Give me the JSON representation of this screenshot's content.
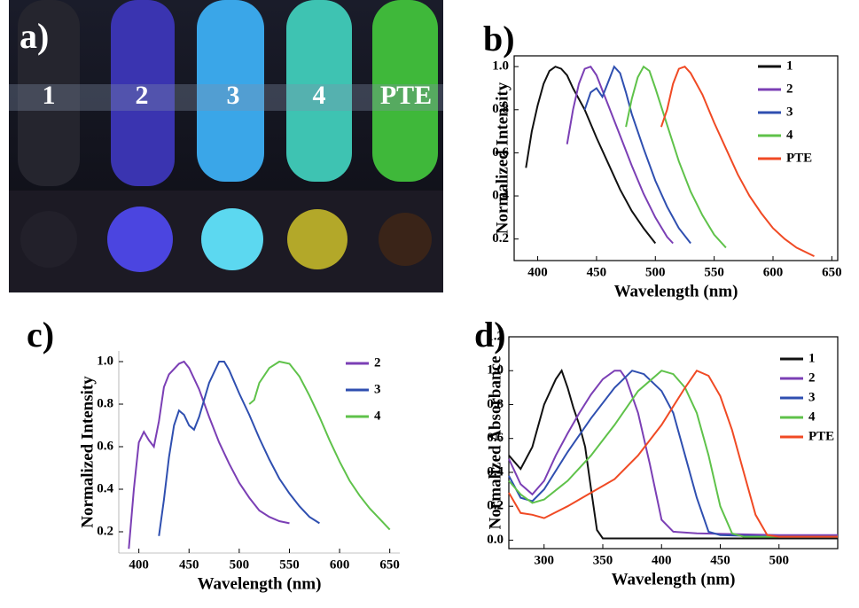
{
  "photo": {
    "label": "a)",
    "vials": [
      "1",
      "2",
      "3",
      "4",
      "PTE"
    ]
  },
  "chart_data": [
    {
      "type": "line",
      "panel_label": "b)",
      "xlabel": "Wavelength (nm)",
      "ylabel": "Normalized Intensity",
      "xlim": [
        380,
        655
      ],
      "ylim": [
        0.1,
        1.05
      ],
      "xticks": [
        400,
        450,
        500,
        550,
        600,
        650
      ],
      "yticks": [
        0.2,
        0.4,
        0.6,
        0.8,
        {
          "value": 1,
          "label": "1.0"
        }
      ],
      "series": [
        {
          "name": "1",
          "color": "#111111",
          "x": [
            390,
            395,
            400,
            405,
            410,
            415,
            420,
            425,
            430,
            440,
            450,
            460,
            470,
            480,
            490,
            500
          ],
          "values": [
            0.53,
            0.7,
            0.82,
            0.92,
            0.98,
            1.0,
            0.99,
            0.96,
            0.9,
            0.8,
            0.67,
            0.55,
            0.43,
            0.33,
            0.25,
            0.18
          ]
        },
        {
          "name": "2",
          "color": "#7b3fb5",
          "x": [
            425,
            430,
            435,
            440,
            445,
            450,
            455,
            460,
            470,
            480,
            490,
            500,
            510,
            515
          ],
          "values": [
            0.64,
            0.8,
            0.92,
            0.99,
            1.0,
            0.96,
            0.89,
            0.82,
            0.68,
            0.54,
            0.41,
            0.3,
            0.21,
            0.18
          ]
        },
        {
          "name": "3",
          "color": "#2f4fb0",
          "x": [
            440,
            445,
            450,
            455,
            460,
            465,
            470,
            475,
            480,
            490,
            500,
            510,
            520,
            530
          ],
          "values": [
            0.8,
            0.88,
            0.9,
            0.86,
            0.93,
            1.0,
            0.97,
            0.88,
            0.78,
            0.62,
            0.47,
            0.35,
            0.25,
            0.18
          ]
        },
        {
          "name": "4",
          "color": "#5fc24a",
          "x": [
            475,
            480,
            485,
            490,
            495,
            500,
            510,
            520,
            530,
            540,
            550,
            560
          ],
          "values": [
            0.72,
            0.85,
            0.95,
            1.0,
            0.98,
            0.9,
            0.73,
            0.56,
            0.42,
            0.31,
            0.22,
            0.16
          ]
        },
        {
          "name": "PTE",
          "color": "#f04a24",
          "x": [
            505,
            510,
            515,
            520,
            525,
            530,
            540,
            550,
            560,
            570,
            580,
            590,
            600,
            610,
            620,
            635
          ],
          "values": [
            0.72,
            0.8,
            0.92,
            0.99,
            1.0,
            0.97,
            0.87,
            0.74,
            0.62,
            0.5,
            0.4,
            0.32,
            0.25,
            0.2,
            0.16,
            0.12
          ]
        }
      ]
    },
    {
      "type": "line",
      "panel_label": "c)",
      "xlabel": "Wavelength (nm)",
      "ylabel": "Normalized Intensity",
      "xlim": [
        380,
        660
      ],
      "ylim": [
        0.1,
        1.05
      ],
      "xticks": [
        400,
        450,
        500,
        550,
        600,
        650
      ],
      "yticks": [
        0.2,
        0.4,
        0.6,
        0.8,
        {
          "value": 1,
          "label": "1.0"
        }
      ],
      "series": [
        {
          "name": "2",
          "color": "#7b3fb5",
          "x": [
            390,
            395,
            400,
            405,
            410,
            415,
            420,
            425,
            430,
            440,
            445,
            450,
            460,
            470,
            480,
            490,
            500,
            510,
            520,
            530,
            540,
            550
          ],
          "values": [
            0.12,
            0.4,
            0.62,
            0.67,
            0.63,
            0.6,
            0.72,
            0.88,
            0.94,
            0.99,
            1.0,
            0.97,
            0.87,
            0.74,
            0.62,
            0.52,
            0.43,
            0.36,
            0.3,
            0.27,
            0.25,
            0.24
          ]
        },
        {
          "name": "3",
          "color": "#2f4fb0",
          "x": [
            420,
            425,
            430,
            435,
            440,
            445,
            450,
            455,
            460,
            470,
            480,
            485,
            490,
            500,
            510,
            520,
            530,
            540,
            550,
            560,
            570,
            580
          ],
          "values": [
            0.18,
            0.35,
            0.55,
            0.7,
            0.77,
            0.75,
            0.7,
            0.68,
            0.74,
            0.9,
            1.0,
            1.0,
            0.96,
            0.85,
            0.75,
            0.64,
            0.54,
            0.45,
            0.38,
            0.32,
            0.27,
            0.24
          ]
        },
        {
          "name": "4",
          "color": "#5fc24a",
          "x": [
            510,
            515,
            520,
            530,
            540,
            550,
            560,
            570,
            580,
            590,
            600,
            610,
            620,
            630,
            640,
            650
          ],
          "values": [
            0.8,
            0.82,
            0.9,
            0.97,
            1.0,
            0.99,
            0.93,
            0.84,
            0.74,
            0.63,
            0.53,
            0.44,
            0.37,
            0.31,
            0.26,
            0.21
          ]
        }
      ]
    },
    {
      "type": "line",
      "panel_label": "d)",
      "xlabel": "Wavelength (nm)",
      "ylabel": "Normalized Absorbance",
      "xlim": [
        270,
        550
      ],
      "ylim": [
        -0.05,
        1.2
      ],
      "xticks": [
        300,
        350,
        400,
        450,
        500
      ],
      "yticks": [
        {
          "value": 0,
          "label": "0.0"
        },
        0.2,
        0.4,
        0.6,
        0.8,
        {
          "value": 1,
          "label": "1.0"
        },
        1.2
      ],
      "series": [
        {
          "name": "1",
          "color": "#111111",
          "x": [
            270,
            280,
            290,
            300,
            310,
            315,
            320,
            325,
            330,
            335,
            340,
            345,
            350,
            400,
            450,
            500,
            550
          ],
          "values": [
            0.5,
            0.42,
            0.55,
            0.8,
            0.95,
            1.0,
            0.9,
            0.78,
            0.68,
            0.55,
            0.3,
            0.06,
            0.01,
            0.01,
            0.01,
            0.01,
            0.01
          ]
        },
        {
          "name": "2",
          "color": "#7b3fb5",
          "x": [
            270,
            280,
            290,
            300,
            310,
            320,
            330,
            340,
            350,
            360,
            365,
            370,
            380,
            390,
            400,
            410,
            430,
            500,
            550
          ],
          "values": [
            0.48,
            0.33,
            0.27,
            0.35,
            0.5,
            0.63,
            0.75,
            0.86,
            0.95,
            1.0,
            1.0,
            0.95,
            0.75,
            0.45,
            0.12,
            0.05,
            0.04,
            0.03,
            0.03
          ]
        },
        {
          "name": "3",
          "color": "#2f4fb0",
          "x": [
            270,
            280,
            290,
            300,
            320,
            340,
            360,
            375,
            385,
            400,
            410,
            420,
            430,
            440,
            450,
            500,
            550
          ],
          "values": [
            0.38,
            0.25,
            0.23,
            0.3,
            0.52,
            0.72,
            0.9,
            1.0,
            0.98,
            0.88,
            0.75,
            0.5,
            0.25,
            0.05,
            0.03,
            0.02,
            0.02
          ]
        },
        {
          "name": "4",
          "color": "#5fc24a",
          "x": [
            270,
            280,
            290,
            300,
            320,
            340,
            360,
            380,
            400,
            410,
            420,
            430,
            440,
            450,
            460,
            470,
            550
          ],
          "values": [
            0.35,
            0.27,
            0.22,
            0.24,
            0.35,
            0.5,
            0.68,
            0.88,
            1.0,
            0.98,
            0.9,
            0.75,
            0.5,
            0.2,
            0.04,
            0.02,
            0.02
          ]
        },
        {
          "name": "PTE",
          "color": "#f04a24",
          "x": [
            270,
            280,
            290,
            300,
            320,
            340,
            360,
            380,
            400,
            420,
            430,
            440,
            450,
            460,
            470,
            480,
            490,
            500,
            550
          ],
          "values": [
            0.28,
            0.16,
            0.15,
            0.13,
            0.2,
            0.28,
            0.36,
            0.5,
            0.68,
            0.9,
            1.0,
            0.97,
            0.85,
            0.65,
            0.4,
            0.15,
            0.03,
            0.02,
            0.02
          ]
        }
      ]
    }
  ]
}
